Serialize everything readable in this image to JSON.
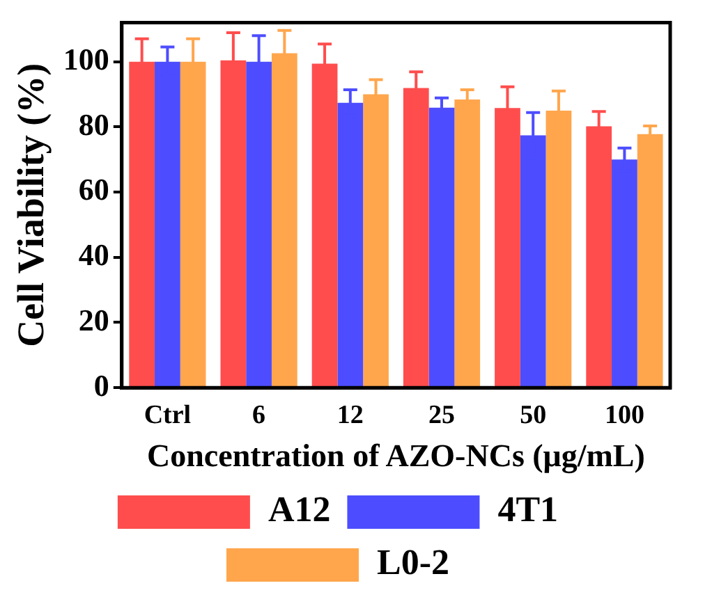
{
  "chart_data": {
    "type": "bar",
    "xlabel": "Concentration of AZO-NCs (μg/mL)",
    "ylabel": "Cell Viability (%)",
    "categories": [
      "Ctrl",
      "6",
      "12",
      "25",
      "50",
      "100"
    ],
    "series": [
      {
        "name": "A12",
        "color": "#ff4d4d",
        "values": [
          100,
          100.4,
          99.4,
          91.9,
          85.8,
          80.2
        ],
        "errors": [
          7,
          8.5,
          6,
          5,
          6.5,
          4.5
        ]
      },
      {
        "name": "4T1",
        "color": "#4d4dff",
        "values": [
          100,
          100,
          87.4,
          85.9,
          77.4,
          70
        ],
        "errors": [
          4.5,
          8,
          4,
          3,
          7,
          3.5
        ]
      },
      {
        "name": "L0-2",
        "color": "#ffa64d",
        "values": [
          100,
          102.6,
          90,
          88.4,
          85,
          77.8
        ],
        "errors": [
          7,
          7,
          4.5,
          3,
          6,
          2.5
        ]
      }
    ],
    "ylim": [
      0,
      112
    ],
    "yticks": [
      0,
      20,
      40,
      60,
      80,
      100
    ],
    "grid": false,
    "legend": "bottom"
  }
}
